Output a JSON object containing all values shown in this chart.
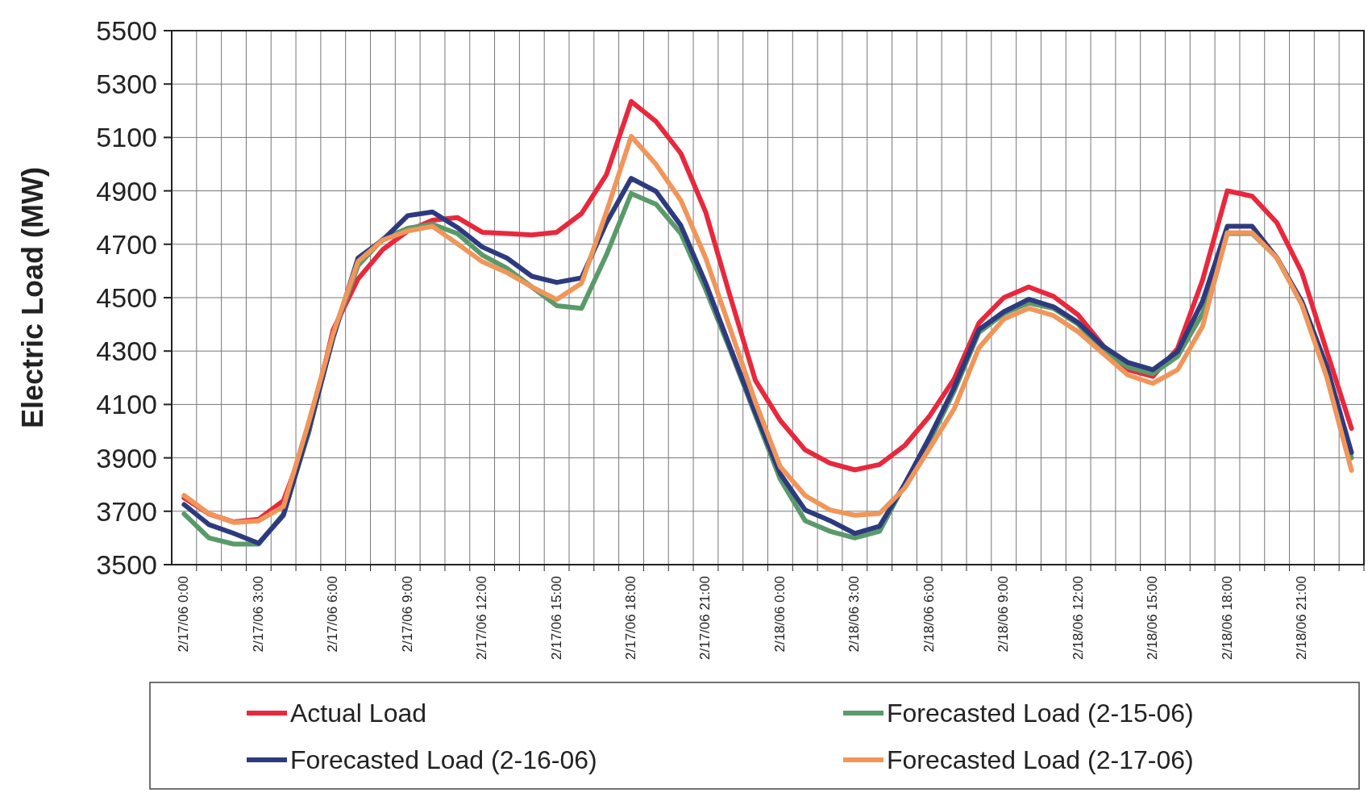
{
  "chart_data": {
    "type": "line",
    "ylabel": "Electric Load (MW)",
    "categories": [
      "2/17/06 0:00",
      null,
      null,
      "2/17/06 3:00",
      null,
      null,
      "2/17/06 6:00",
      null,
      null,
      "2/17/06 9:00",
      null,
      null,
      "2/17/06 12:00",
      null,
      null,
      "2/17/06 15:00",
      null,
      null,
      "2/17/06 18:00",
      null,
      null,
      "2/17/06 21:00",
      null,
      null,
      "2/18/06 0:00",
      null,
      null,
      "2/18/06 3:00",
      null,
      null,
      "2/18/06 6:00",
      null,
      null,
      "2/18/06 9:00",
      null,
      null,
      "2/18/06 12:00",
      null,
      null,
      "2/18/06 15:00",
      null,
      null,
      "2/18/06 18:00",
      null,
      null,
      "2/18/06 21:00",
      null,
      null
    ],
    "ylim": [
      3500,
      5500
    ],
    "yticks": [
      3500,
      3700,
      3900,
      4100,
      4300,
      4500,
      4700,
      4900,
      5100,
      5300,
      5500
    ],
    "grid": true,
    "legend": "bottom",
    "marker": "none",
    "line_style": "solid",
    "series": [
      {
        "name": "Actual Load",
        "color": "#e8283c",
        "values": [
          3750,
          3690,
          3660,
          3670,
          3740,
          3990,
          4380,
          4570,
          4680,
          4750,
          4790,
          4800,
          4745,
          4740,
          4735,
          4745,
          4815,
          4960,
          5235,
          5160,
          5040,
          4820,
          4500,
          4190,
          4040,
          3930,
          3880,
          3855,
          3875,
          3945,
          4055,
          4195,
          4405,
          4500,
          4540,
          4505,
          4435,
          4320,
          4230,
          4205,
          4310,
          4565,
          4900,
          4880,
          4780,
          4595,
          4300,
          4010
        ]
      },
      {
        "name": "Forecasted Load (2-15-06)",
        "color": "#5a9a6a",
        "values": [
          3690,
          3600,
          3577,
          3577,
          3690,
          3990,
          4360,
          4620,
          4720,
          4760,
          4775,
          4740,
          4660,
          4610,
          4540,
          4470,
          4460,
          4660,
          4890,
          4850,
          4740,
          4530,
          4300,
          4060,
          3820,
          3665,
          3625,
          3600,
          3625,
          3800,
          3960,
          4150,
          4370,
          4440,
          4480,
          4460,
          4400,
          4300,
          4240,
          4215,
          4280,
          4440,
          4740,
          4740,
          4650,
          4480,
          4240,
          3900
        ]
      },
      {
        "name": "Forecasted Load (2-16-06)",
        "color": "#2e3a7e",
        "values": [
          3725,
          3650,
          3617,
          3580,
          3685,
          4000,
          4350,
          4648,
          4716,
          4807,
          4821,
          4763,
          4690,
          4648,
          4580,
          4557,
          4574,
          4780,
          4947,
          4898,
          4770,
          4554,
          4310,
          4069,
          3840,
          3705,
          3665,
          3617,
          3644,
          3800,
          3975,
          4163,
          4380,
          4447,
          4494,
          4466,
          4406,
          4318,
          4257,
          4230,
          4298,
          4486,
          4767,
          4767,
          4648,
          4486,
          4243,
          3920
        ]
      },
      {
        "name": "Forecasted Load (2-17-06)",
        "color": "#f0965a",
        "values": [
          3759,
          3691,
          3658,
          3664,
          3718,
          4028,
          4365,
          4635,
          4716,
          4750,
          4767,
          4702,
          4635,
          4594,
          4540,
          4493,
          4554,
          4820,
          5104,
          4999,
          4864,
          4648,
          4379,
          4109,
          3867,
          3759,
          3705,
          3685,
          3692,
          3786,
          3934,
          4083,
          4312,
          4420,
          4460,
          4433,
          4372,
          4291,
          4210,
          4179,
          4230,
          4392,
          4743,
          4743,
          4648,
          4473,
          4203,
          3853
        ]
      }
    ]
  }
}
